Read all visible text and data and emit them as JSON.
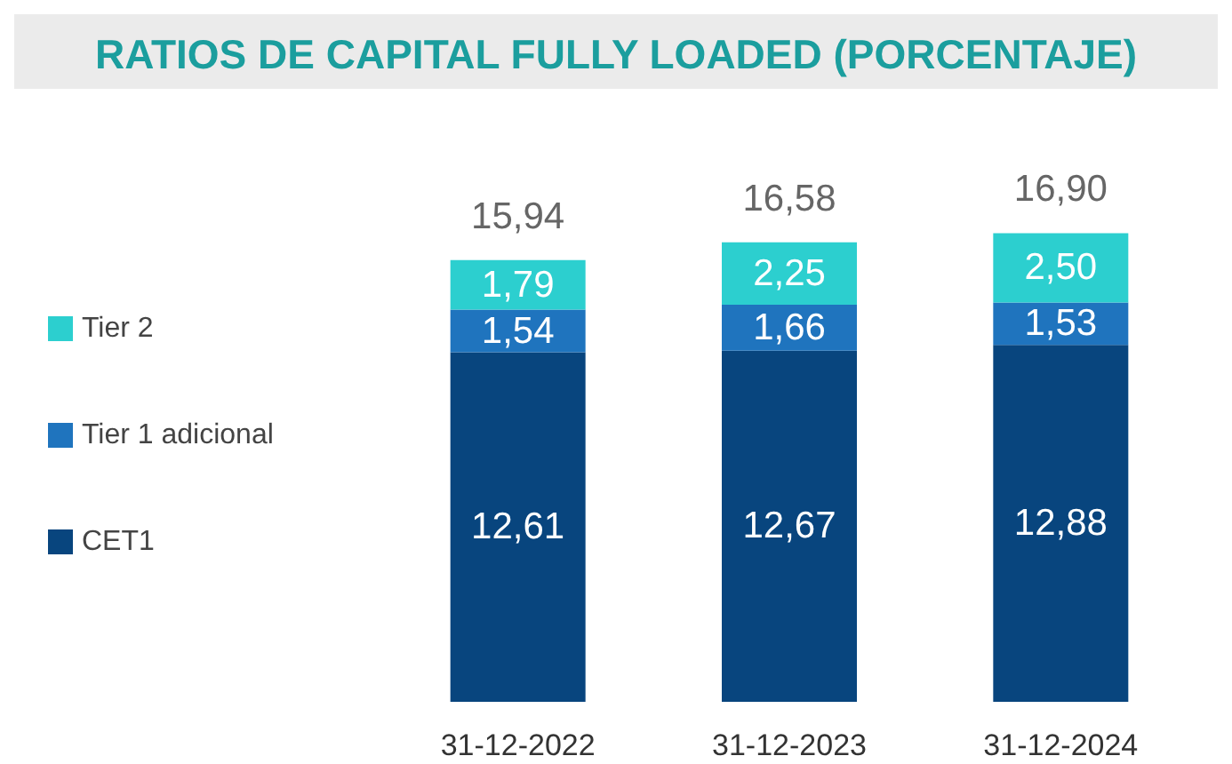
{
  "chart_data": {
    "type": "bar",
    "title": "RATIOS DE CAPITAL FULLY LOADED (PORCENTAJE)",
    "categories": [
      "31-12-2022",
      "31-12-2023",
      "31-12-2024"
    ],
    "stacked": true,
    "legend": "left",
    "totals": [
      "15,94",
      "16,58",
      "16,90"
    ],
    "series": [
      {
        "name": "CET1",
        "color": "#08457e",
        "values": [
          12.61,
          12.67,
          12.88
        ],
        "value_labels": [
          "12,61",
          "12,67",
          "12,88"
        ]
      },
      {
        "name": "Tier 1 adicional",
        "color": "#1f74be",
        "values": [
          1.54,
          1.66,
          1.53
        ],
        "value_labels": [
          "1,54",
          "1,66",
          "1,53"
        ]
      },
      {
        "name": "Tier 2",
        "color": "#2ccfcf",
        "values": [
          1.79,
          2.25,
          2.5
        ],
        "value_labels": [
          "1,79",
          "2,25",
          "2,50"
        ]
      }
    ]
  }
}
